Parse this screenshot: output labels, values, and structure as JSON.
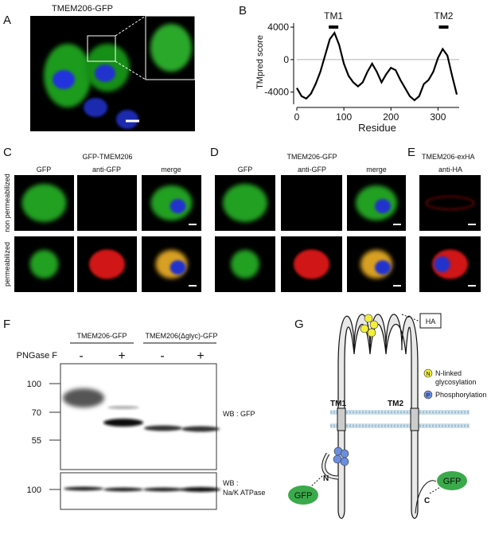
{
  "panels": {
    "A": {
      "label": "A",
      "title": "TMEM206-GFP"
    },
    "B": {
      "label": "B"
    },
    "C": {
      "label": "C",
      "title": "GFP-TMEM206",
      "columns": [
        "GFP",
        "anti-GFP",
        "merge"
      ],
      "rows": [
        "non permeabilized",
        "permeabilized"
      ]
    },
    "D": {
      "label": "D",
      "title": "TMEM206-GFP",
      "columns": [
        "GFP",
        "anti-GFP",
        "merge"
      ]
    },
    "E": {
      "label": "E",
      "title": "TMEM206-exHA",
      "columns": [
        "anti-HA"
      ]
    },
    "F": {
      "label": "F",
      "groups": [
        "TMEM206-GFP",
        "TMEM206(Δglyc)-GFP"
      ],
      "treatment": "PNGase F",
      "lanes": [
        "-",
        "+",
        "-",
        "+"
      ],
      "markers_top": [
        "100",
        "70",
        "55"
      ],
      "markers_bottom": [
        "100"
      ],
      "blot_top": "WB : GFP",
      "blot_bottom": [
        "WB :",
        "Na/K ATPase"
      ]
    },
    "G": {
      "label": "G",
      "tag": "HA",
      "legend_n_symbol": "N",
      "legend_n": [
        "N-linked",
        "glycosylation"
      ],
      "legend_p_symbol": "P",
      "legend_p": "Phosphorylation",
      "tm1": "TM1",
      "tm2": "TM2",
      "gfp_n": "GFP",
      "gfp_c": "GFP",
      "n_term": "N",
      "c_term": "C"
    }
  },
  "chart_data": {
    "type": "line",
    "ylabel": "TMpred score",
    "xlabel": "Residue",
    "x": [
      0,
      10,
      20,
      30,
      40,
      50,
      60,
      70,
      80,
      90,
      100,
      110,
      120,
      130,
      140,
      150,
      160,
      170,
      180,
      190,
      200,
      210,
      220,
      230,
      240,
      250,
      260,
      270,
      280,
      290,
      300,
      310,
      320,
      330,
      340
    ],
    "values": [
      -3500,
      -4500,
      -4800,
      -4200,
      -3000,
      -1500,
      500,
      2500,
      3300,
      1800,
      -500,
      -2000,
      -2800,
      -3300,
      -2800,
      -1500,
      -500,
      -1500,
      -2800,
      -1800,
      -1000,
      -1300,
      -2500,
      -3500,
      -4500,
      -5000,
      -4500,
      -3000,
      -2500,
      -1500,
      200,
      1300,
      500,
      -2000,
      -4300
    ],
    "color": "#000000",
    "xlim": [
      0,
      345
    ],
    "ylim": [
      -5500,
      4500
    ],
    "xticks": [
      0,
      100,
      200,
      300
    ],
    "yticks": [
      4000,
      0,
      -4000
    ],
    "annotations": [
      {
        "text": "TM1",
        "x": 78
      },
      {
        "text": "TM2",
        "x": 312
      }
    ]
  }
}
